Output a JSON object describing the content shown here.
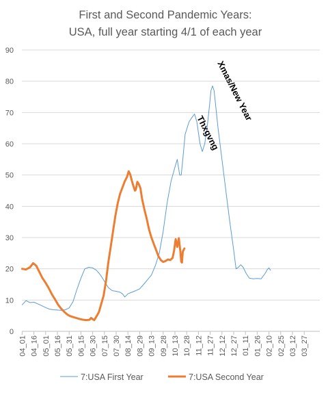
{
  "chart_data": {
    "type": "line",
    "title_lines": [
      "First and Second Pandemic Years:",
      "USA, full year starting 4/1 of each year"
    ],
    "xlabel": "",
    "ylabel": "",
    "ylim": [
      0,
      90
    ],
    "y_ticks": [
      0,
      10,
      20,
      30,
      40,
      50,
      60,
      70,
      80,
      90
    ],
    "grid": true,
    "legend_position": "bottom",
    "x_ticks": [
      "04_01",
      "04_16",
      "05_01",
      "05_16",
      "05_31",
      "06_15",
      "06_30",
      "07_15",
      "07_30",
      "08_14",
      "08_29",
      "09_13",
      "09_28",
      "10_13",
      "10_28",
      "11_12",
      "11_27",
      "12_12",
      "12_27",
      "01_11",
      "01_26",
      "02_10",
      "02_25",
      "03_12",
      "03_27"
    ],
    "annotations": [
      "Xmas/New Year",
      "Thxgvng"
    ],
    "series": [
      {
        "name": "7:USA First Year",
        "color": "#5b9bd5",
        "points": [
          [
            0,
            8.5
          ],
          [
            5,
            9.8
          ],
          [
            10,
            9.2
          ],
          [
            15,
            9.3
          ],
          [
            20,
            8.8
          ],
          [
            25,
            8.2
          ],
          [
            30,
            7.6
          ],
          [
            35,
            7.1
          ],
          [
            40,
            6.9
          ],
          [
            45,
            6.8
          ],
          [
            50,
            6.7
          ],
          [
            55,
            6.9
          ],
          [
            60,
            7.5
          ],
          [
            65,
            9.5
          ],
          [
            70,
            13.5
          ],
          [
            75,
            17
          ],
          [
            80,
            20
          ],
          [
            85,
            20.5
          ],
          [
            90,
            20.3
          ],
          [
            95,
            19.5
          ],
          [
            100,
            18
          ],
          [
            105,
            16
          ],
          [
            110,
            14
          ],
          [
            115,
            13
          ],
          [
            120,
            12.8
          ],
          [
            125,
            12.5
          ],
          [
            128,
            12
          ],
          [
            131,
            11
          ],
          [
            135,
            12
          ],
          [
            140,
            12.5
          ],
          [
            145,
            13
          ],
          [
            150,
            13.6
          ],
          [
            155,
            15
          ],
          [
            160,
            16.5
          ],
          [
            165,
            18
          ],
          [
            170,
            21
          ],
          [
            175,
            25
          ],
          [
            180,
            32
          ],
          [
            185,
            41
          ],
          [
            190,
            48
          ],
          [
            195,
            52.5
          ],
          [
            198,
            55
          ],
          [
            201,
            50
          ],
          [
            203,
            50
          ],
          [
            205,
            55
          ],
          [
            208,
            63
          ],
          [
            213,
            67
          ],
          [
            217,
            68.5
          ],
          [
            220,
            69.5
          ],
          [
            223,
            67
          ],
          [
            227,
            60
          ],
          [
            230,
            57.5
          ],
          [
            233,
            60
          ],
          [
            236,
            65
          ],
          [
            239,
            72
          ],
          [
            241,
            77
          ],
          [
            243,
            78.5
          ],
          [
            245,
            77
          ],
          [
            250,
            65
          ],
          [
            255,
            55
          ],
          [
            260,
            45
          ],
          [
            265,
            35
          ],
          [
            270,
            26
          ],
          [
            273,
            20
          ],
          [
            276,
            20.5
          ],
          [
            279,
            21.3
          ],
          [
            282,
            20.5
          ],
          [
            286,
            18.5
          ],
          [
            290,
            17
          ],
          [
            295,
            16.8
          ],
          [
            300,
            16.9
          ],
          [
            305,
            16.8
          ],
          [
            310,
            18.5
          ],
          [
            313,
            19.8
          ],
          [
            315,
            20.3
          ],
          [
            317,
            19.5
          ]
        ]
      },
      {
        "name": "7:USA Second Year",
        "color": "#ed7d31",
        "points": [
          [
            0,
            20
          ],
          [
            5,
            19.8
          ],
          [
            10,
            20.5
          ],
          [
            14,
            21.8
          ],
          [
            18,
            21
          ],
          [
            22,
            19
          ],
          [
            26,
            17
          ],
          [
            30,
            15.5
          ],
          [
            34,
            13.8
          ],
          [
            38,
            11.8
          ],
          [
            42,
            10.2
          ],
          [
            46,
            8.5
          ],
          [
            50,
            7.2
          ],
          [
            54,
            6.2
          ],
          [
            58,
            5.3
          ],
          [
            62,
            4.8
          ],
          [
            66,
            4.5
          ],
          [
            70,
            4.2
          ],
          [
            74,
            3.9
          ],
          [
            78,
            3.7
          ],
          [
            82,
            3.6
          ],
          [
            86,
            3.7
          ],
          [
            88,
            4.3
          ],
          [
            90,
            3.9
          ],
          [
            92,
            3.6
          ],
          [
            95,
            4.8
          ],
          [
            98,
            6.2
          ],
          [
            101,
            8.8
          ],
          [
            104,
            11.5
          ],
          [
            107,
            16
          ],
          [
            110,
            22
          ],
          [
            113,
            27
          ],
          [
            116,
            32
          ],
          [
            119,
            37
          ],
          [
            122,
            41
          ],
          [
            125,
            44
          ],
          [
            128,
            46
          ],
          [
            131,
            48
          ],
          [
            134,
            49.5
          ],
          [
            136,
            51.2
          ],
          [
            138,
            50.2
          ],
          [
            140,
            48.2
          ],
          [
            142,
            46.5
          ],
          [
            144,
            45
          ],
          [
            145,
            45.3
          ],
          [
            147,
            47.8
          ],
          [
            149,
            47
          ],
          [
            151,
            45.8
          ],
          [
            153,
            42.5
          ],
          [
            156,
            39
          ],
          [
            159,
            36
          ],
          [
            162,
            32.5
          ],
          [
            165,
            30
          ],
          [
            168,
            28
          ],
          [
            171,
            26
          ],
          [
            174,
            24
          ],
          [
            177,
            22.8
          ],
          [
            180,
            22.2
          ],
          [
            183,
            22.5
          ],
          [
            186,
            23
          ],
          [
            189,
            22.8
          ],
          [
            192,
            23.5
          ],
          [
            194,
            26
          ],
          [
            196,
            29.5
          ],
          [
            198,
            27
          ],
          [
            200,
            29.8
          ],
          [
            202,
            25.5
          ],
          [
            203,
            22.3
          ],
          [
            204,
            22
          ],
          [
            205,
            25.5
          ],
          [
            207,
            26.5
          ]
        ]
      }
    ]
  }
}
